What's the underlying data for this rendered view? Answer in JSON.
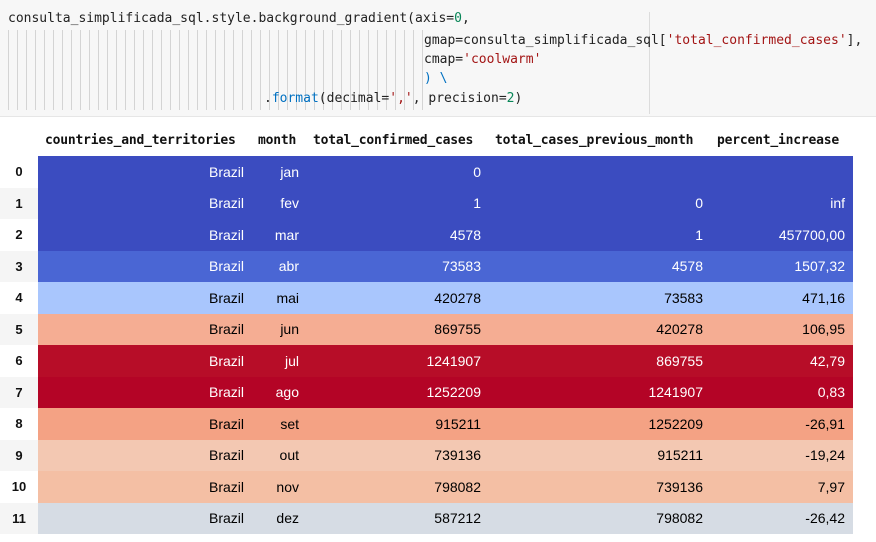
{
  "code": {
    "line1": {
      "prefix": "consulta_simplificada_sql.style.background_gradient(axis=",
      "num": "0",
      "suffix": ","
    },
    "line2": {
      "prefix": "gmap=consulta_simplificada_sql[",
      "str": "'total_confirmed_cases'",
      "suffix": "],"
    },
    "line3": {
      "prefix": "cmap=",
      "str": "'coolwarm'"
    },
    "line4": {
      "text": ") \\"
    },
    "line5": {
      "prefix": ".",
      "fn": "format",
      "mid": "(decimal=",
      "str": "','",
      "suffix": ", precision=",
      "num": "2",
      "end": ")"
    }
  },
  "table": {
    "columns": [
      "countries_and_territories",
      "month",
      "total_confirmed_cases",
      "total_cases_previous_month",
      "percent_increase"
    ],
    "rows": [
      {
        "index": "0",
        "country": "Brazil",
        "month": "jan",
        "total": "0",
        "prev": "",
        "pct": "",
        "bg": "#3b4cc0",
        "fg": "#ffffff"
      },
      {
        "index": "1",
        "country": "Brazil",
        "month": "fev",
        "total": "1",
        "prev": "0",
        "pct": "inf",
        "bg": "#3b4cc0",
        "fg": "#ffffff"
      },
      {
        "index": "2",
        "country": "Brazil",
        "month": "mar",
        "total": "4578",
        "prev": "1",
        "pct": "457700,00",
        "bg": "#3b4cc0",
        "fg": "#ffffff"
      },
      {
        "index": "3",
        "country": "Brazil",
        "month": "abr",
        "total": "73583",
        "prev": "4578",
        "pct": "1507,32",
        "bg": "#4a66d4",
        "fg": "#ffffff"
      },
      {
        "index": "4",
        "country": "Brazil",
        "month": "mai",
        "total": "420278",
        "prev": "73583",
        "pct": "471,16",
        "bg": "#a9c6fd",
        "fg": "#000000"
      },
      {
        "index": "5",
        "country": "Brazil",
        "month": "jun",
        "total": "869755",
        "prev": "420278",
        "pct": "106,95",
        "bg": "#f5ad93",
        "fg": "#000000"
      },
      {
        "index": "6",
        "country": "Brazil",
        "month": "jul",
        "total": "1241907",
        "prev": "869755",
        "pct": "42,79",
        "bg": "#b70d28",
        "fg": "#ffffff"
      },
      {
        "index": "7",
        "country": "Brazil",
        "month": "ago",
        "total": "1252209",
        "prev": "1241907",
        "pct": "0,83",
        "bg": "#b40426",
        "fg": "#ffffff"
      },
      {
        "index": "8",
        "country": "Brazil",
        "month": "set",
        "total": "915211",
        "prev": "1252209",
        "pct": "-26,91",
        "bg": "#f4a284",
        "fg": "#000000"
      },
      {
        "index": "9",
        "country": "Brazil",
        "month": "out",
        "total": "739136",
        "prev": "915211",
        "pct": "-19,24",
        "bg": "#f3c8b2",
        "fg": "#000000"
      },
      {
        "index": "10",
        "country": "Brazil",
        "month": "nov",
        "total": "798082",
        "prev": "739136",
        "pct": "7,97",
        "bg": "#f4bfa4",
        "fg": "#000000"
      },
      {
        "index": "11",
        "country": "Brazil",
        "month": "dez",
        "total": "587212",
        "prev": "798082",
        "pct": "-26,42",
        "bg": "#d6dce4",
        "fg": "#000000"
      }
    ]
  }
}
